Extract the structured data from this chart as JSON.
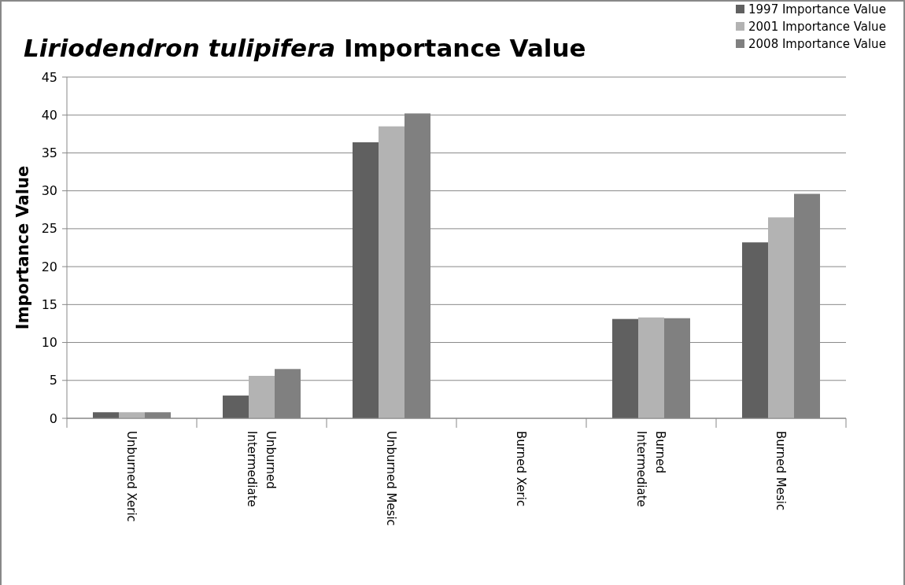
{
  "chart_data": {
    "type": "bar",
    "title": "Liriodendron tulipifera Importance Value",
    "ylabel": "Importance Value",
    "categories": [
      "Unburned Xeric",
      "Unburned Intermediate",
      "Unburned Mesic",
      "Burned Xeric",
      "Burned Intermediate",
      "Burned Mesic"
    ],
    "series": [
      {
        "name": "1997 Importance Value",
        "color": "#606060",
        "values": [
          0.8,
          3.0,
          36.4,
          0,
          13.1,
          23.2
        ]
      },
      {
        "name": "2001 Importance Value",
        "color": "#b3b3b3",
        "values": [
          0.8,
          5.6,
          38.5,
          0,
          13.3,
          26.5
        ]
      },
      {
        "name": "2008 Importance Value",
        "color": "#808080",
        "values": [
          0.8,
          6.5,
          40.2,
          0,
          13.2,
          29.6
        ]
      }
    ],
    "ylim": [
      0,
      45
    ],
    "yticks": [
      0,
      5,
      10,
      15,
      20,
      25,
      30,
      35,
      40,
      45
    ],
    "grid": "y",
    "legend": "top right"
  }
}
